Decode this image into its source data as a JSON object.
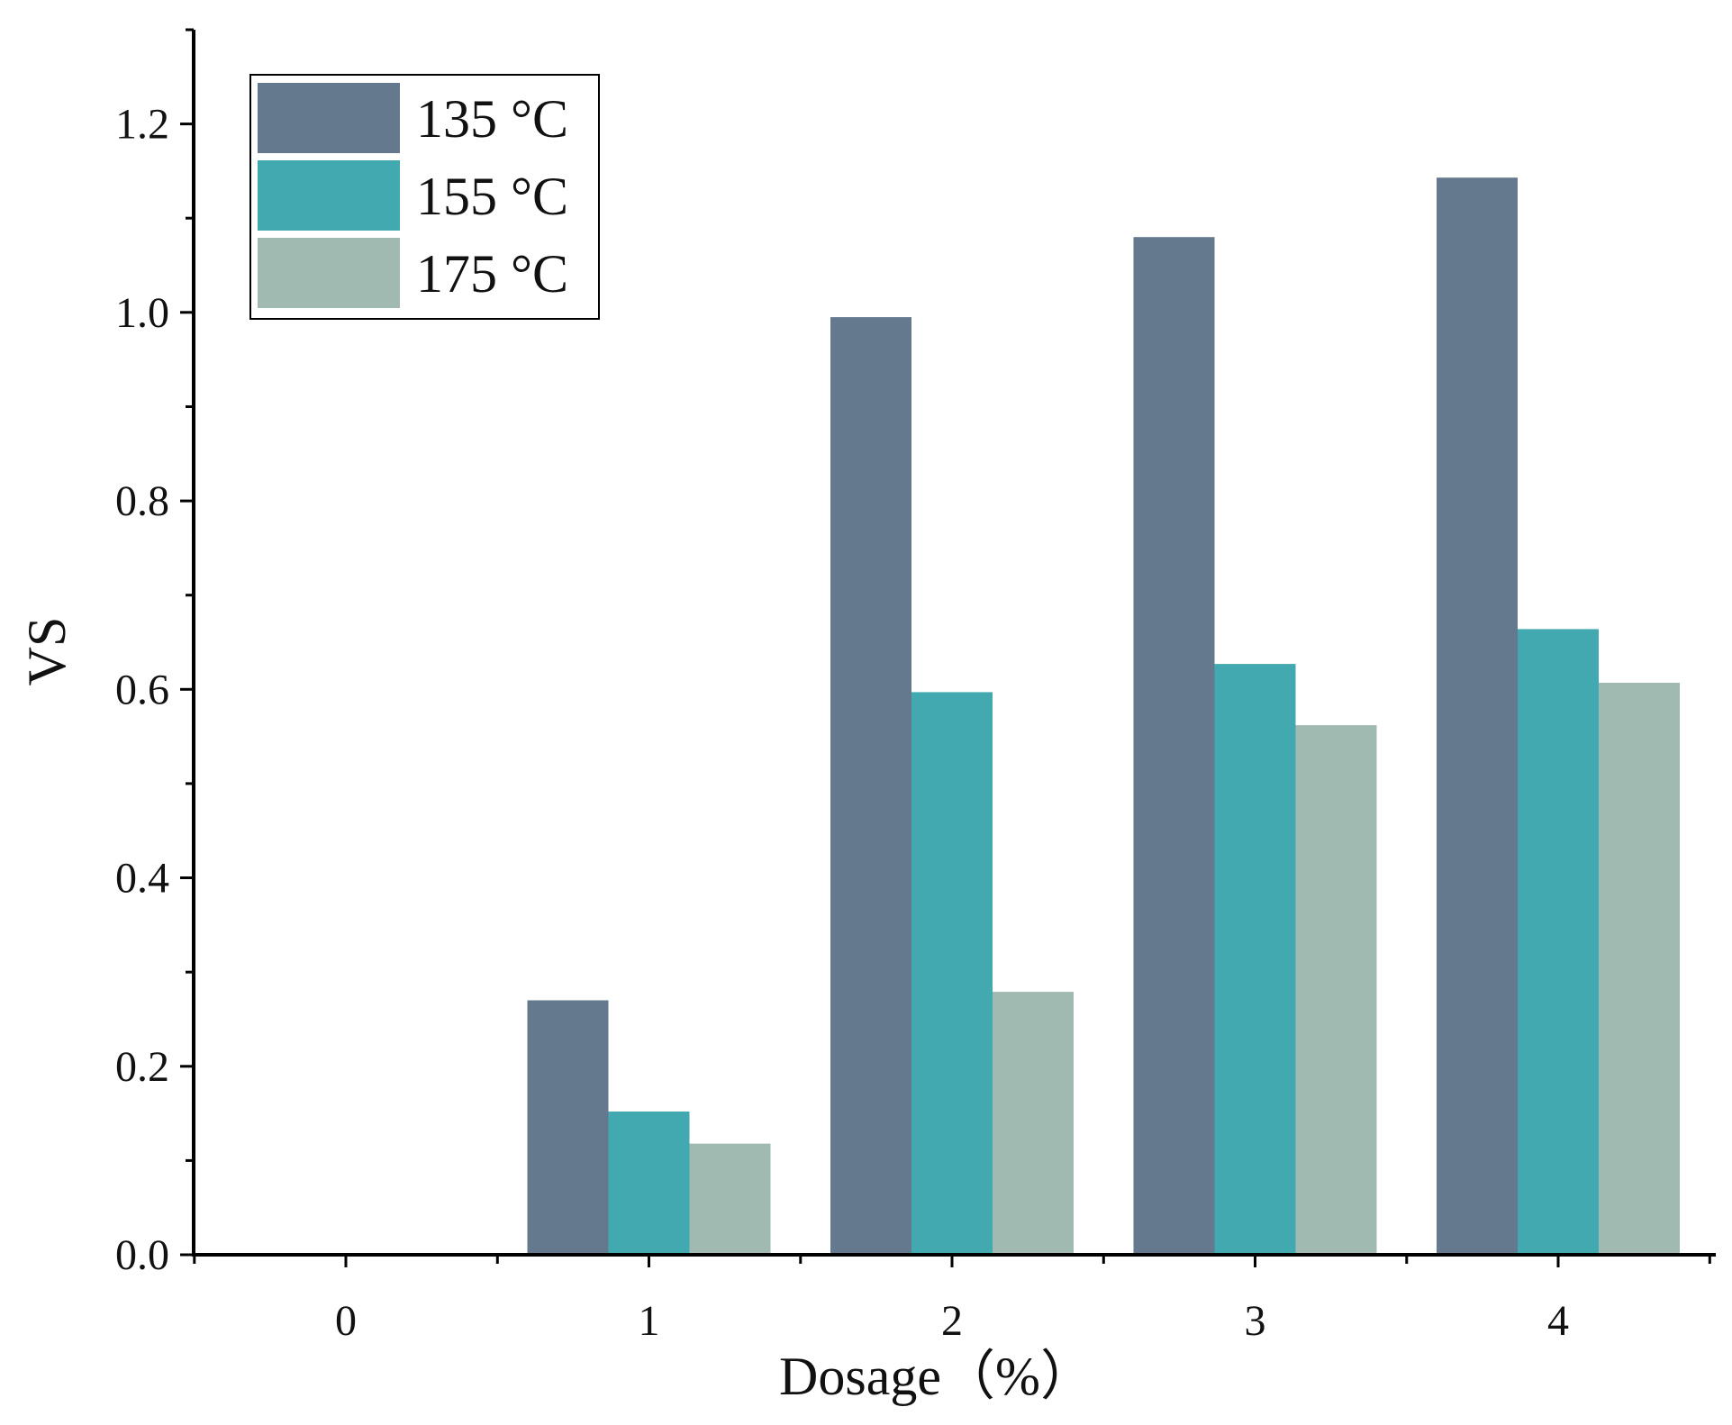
{
  "chart_data": {
    "type": "bar",
    "title": "",
    "xlabel": "Dosage（%）",
    "ylabel": "VS",
    "categories": [
      "0",
      "1",
      "2",
      "3",
      "4"
    ],
    "series": [
      {
        "name": "135 °C",
        "color": "#64798e",
        "values": [
          0,
          0.27,
          0.995,
          1.08,
          1.143
        ]
      },
      {
        "name": "155 °C",
        "color": "#43a9b0",
        "values": [
          0,
          0.152,
          0.597,
          0.627,
          0.664
        ]
      },
      {
        "name": "175 °C",
        "color": "#a1bab1",
        "values": [
          0,
          0.118,
          0.279,
          0.562,
          0.607
        ]
      }
    ],
    "ylim": [
      0,
      1.3
    ],
    "yticks": [
      0.0,
      0.2,
      0.4,
      0.6,
      0.8,
      1.0,
      1.2
    ],
    "ytick_labels": [
      "0.0",
      "0.2",
      "0.4",
      "0.6",
      "0.8",
      "1.0",
      "1.2"
    ],
    "legend_position": "top-left",
    "grid": false
  }
}
